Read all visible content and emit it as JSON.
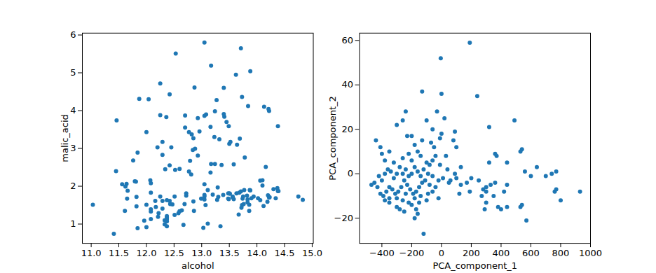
{
  "chart_data": [
    {
      "type": "scatter",
      "x_label": "alcohol",
      "y_label": "malic_acid",
      "color": "#1f77b4",
      "marker": "o",
      "grid": false,
      "xlim": [
        10.84,
        15.02
      ],
      "xticks": [
        {
          "value": 11,
          "label": "11.0"
        },
        11.5,
        {
          "value": 12,
          "label": "12.0"
        },
        12.5,
        {
          "value": 13,
          "label": "13.0"
        },
        13.5,
        {
          "value": 14,
          "label": "14.0"
        },
        14.5,
        {
          "value": 15,
          "label": "15.0"
        }
      ],
      "ylim": [
        0.49,
        6.05
      ],
      "yticks": [
        1,
        2,
        3,
        4,
        5,
        6
      ],
      "x": [
        14.23,
        13.2,
        13.16,
        14.37,
        13.24,
        14.2,
        14.39,
        14.06,
        14.83,
        13.86,
        14.1,
        14.12,
        13.75,
        14.75,
        14.38,
        13.63,
        14.3,
        13.83,
        14.19,
        13.64,
        14.06,
        12.93,
        13.71,
        12.85,
        13.5,
        13.05,
        13.39,
        13.3,
        13.87,
        14.02,
        13.73,
        13.58,
        13.68,
        13.76,
        13.51,
        13.48,
        13.28,
        13.05,
        13.07,
        14.22,
        13.56,
        13.41,
        13.88,
        13.24,
        13.05,
        14.21,
        14.38,
        13.9,
        14.1,
        13.94,
        13.05,
        13.83,
        13.82,
        13.77,
        13.74,
        13.56,
        14.22,
        13.29,
        13.72,
        12.37,
        12.33,
        12.64,
        13.67,
        12.37,
        12.17,
        12.37,
        13.11,
        12.37,
        13.34,
        12.21,
        12.29,
        13.86,
        13.49,
        12.99,
        11.96,
        11.66,
        13.03,
        11.84,
        12.33,
        12.7,
        12,
        12.72,
        12.08,
        13.05,
        11.84,
        12.67,
        12.16,
        11.65,
        11.64,
        12.08,
        12.08,
        12,
        12.69,
        12.29,
        11.62,
        12.47,
        11.81,
        12.29,
        12.37,
        12.29,
        12.08,
        12.6,
        12.34,
        11.82,
        12.51,
        12.42,
        12.25,
        12.72,
        12.22,
        11.61,
        11.46,
        12.52,
        11.76,
        11.41,
        12.08,
        11.03,
        11.82,
        12.42,
        12.77,
        12,
        11.45,
        11.56,
        12.42,
        13.05,
        11.87,
        12.07,
        12.43,
        11.79,
        12.37,
        12.04,
        12.86,
        12.88,
        12.81,
        12.7,
        12.51,
        12.6,
        12.25,
        12.53,
        13.49,
        12.84,
        12.93,
        13.36,
        13.52,
        13.62,
        12.25,
        13.16,
        13.88,
        12.87,
        13.32,
        13.08,
        13.5,
        12.79,
        13.11,
        13.23,
        12.58,
        13.17,
        13.84,
        12.45,
        14.34,
        13.48,
        12.36,
        13.69,
        12.85,
        12.96,
        13.78,
        13.73,
        13.45,
        12.82,
        13.58,
        13.4,
        12.2,
        12.77,
        14.16,
        13.71,
        13.4,
        13.27,
        13.17,
        14.13
      ],
      "y": [
        1.71,
        1.78,
        2.36,
        1.95,
        2.59,
        1.76,
        1.87,
        2.15,
        1.64,
        1.35,
        2.16,
        1.48,
        1.73,
        1.73,
        1.87,
        1.81,
        1.92,
        1.57,
        1.59,
        3.1,
        1.63,
        3.8,
        1.86,
        1.6,
        1.81,
        2.05,
        1.77,
        1.72,
        1.9,
        1.68,
        1.5,
        1.66,
        1.83,
        1.53,
        1.8,
        1.81,
        1.64,
        1.65,
        1.5,
        3.99,
        1.71,
        3.84,
        1.89,
        3.98,
        1.77,
        4.04,
        3.59,
        1.68,
        2.02,
        1.73,
        1.73,
        1.65,
        1.75,
        1.9,
        1.67,
        1.73,
        1.7,
        1.97,
        1.43,
        0.94,
        1.1,
        1.36,
        1.25,
        1.13,
        1.45,
        1.21,
        1.01,
        1.17,
        0.94,
        1.19,
        1.61,
        1.51,
        1.66,
        1.67,
        1.09,
        1.88,
        0.9,
        2.89,
        0.99,
        3.87,
        0.92,
        1.81,
        1.13,
        3.86,
        0.89,
        0.98,
        1.61,
        1.67,
        2.06,
        1.33,
        1.83,
        1.51,
        1.53,
        2.83,
        1.99,
        1.52,
        2.12,
        1.41,
        1.07,
        3.17,
        2.08,
        1.34,
        2.45,
        1.72,
        1.73,
        2.55,
        1.73,
        1.75,
        1.29,
        1.35,
        3.74,
        2.43,
        2.68,
        0.74,
        1.39,
        1.51,
        1.47,
        1.61,
        3.43,
        3.43,
        2.4,
        2.05,
        4.43,
        5.8,
        4.31,
        2.16,
        1.53,
        2.13,
        1.63,
        4.3,
        1.35,
        2.99,
        2.31,
        3.55,
        1.24,
        2.46,
        4.72,
        5.51,
        3.59,
        2.96,
        2.81,
        2.56,
        3.17,
        4.95,
        3.88,
        3.57,
        5.04,
        4.61,
        3.24,
        3.9,
        3.12,
        2.67,
        1.9,
        3.3,
        1.29,
        5.19,
        4.12,
        3.03,
        1.68,
        1.67,
        3.83,
        3.26,
        3.27,
        3.45,
        2.76,
        4.36,
        3.7,
        3.37,
        2.58,
        4.6,
        3.03,
        2.39,
        2.51,
        5.65,
        3.91,
        4.28,
        2.59,
        4.1
      ]
    },
    {
      "type": "scatter",
      "x_label": "PCA_component_1",
      "y_label": "PCA_component_2",
      "color": "#1f77b4",
      "marker": "o",
      "grid": false,
      "xlim": [
        -550,
        1000
      ],
      "xticks": [
        -400,
        -200,
        0,
        200,
        400,
        600,
        800,
        1000
      ],
      "ylim": [
        -31.3,
        63.3
      ],
      "yticks": [
        -20,
        0,
        20,
        40,
        60
      ],
      "x": [
        190,
        -5,
        240,
        -130,
        0,
        -100,
        490,
        320,
        -240,
        -440,
        -410,
        -260,
        -300,
        -230,
        -200,
        -160,
        -30,
        20,
        -60,
        90,
        80,
        100,
        -220,
        -120,
        -180,
        -250,
        -170,
        -200,
        -300,
        -350,
        -380,
        440,
        320,
        360,
        370,
        530,
        540,
        640,
        740,
        770,
        700,
        560,
        600,
        760,
        770,
        800,
        930,
        570,
        530,
        540,
        440,
        400,
        380,
        300,
        290,
        270,
        280,
        300,
        330,
        360,
        420,
        440,
        300,
        350,
        250,
        200,
        190,
        170,
        130,
        100,
        90,
        50,
        40,
        30,
        10,
        -20,
        -10,
        -40,
        -60,
        -80,
        -90,
        -110,
        -130,
        -150,
        -170,
        -190,
        -210,
        -230,
        -250,
        -270,
        -290,
        -310,
        -330,
        -350,
        -370,
        -390,
        -410,
        -430,
        -450,
        -470,
        -400,
        -380,
        -360,
        -340,
        -320,
        -300,
        -280,
        -260,
        -240,
        -220,
        -200,
        -180,
        -160,
        -140,
        -120,
        -100,
        -80,
        -60,
        -140,
        -200,
        -260,
        -320,
        -380,
        -300,
        -260,
        -220,
        -180,
        -140,
        -100,
        -60,
        -420,
        -350,
        -240,
        -150,
        -90,
        -40,
        -20,
        -280,
        -160,
        -50,
        -10,
        60,
        120,
        130,
        -400,
        -350,
        -180,
        -130,
        -70,
        0
      ],
      "y": [
        59,
        52,
        35,
        37,
        36,
        24,
        24,
        21,
        28,
        15,
        12,
        24,
        22,
        17,
        17,
        10,
        28,
        25,
        20,
        19,
        15,
        12,
        9,
        -27,
        -20,
        -17,
        -16,
        -14,
        -15,
        -13,
        -12,
        5,
        5,
        9,
        8,
        10,
        11,
        3,
        0,
        1,
        -1,
        1,
        -1,
        -8,
        -7,
        -12,
        -8,
        -21,
        -15,
        -14,
        -15,
        -16,
        -15,
        -13,
        -16,
        -10,
        -7,
        -6,
        -5,
        -4,
        -8,
        -5,
        -8,
        -10,
        -3,
        -2,
        -8,
        -4,
        -5,
        -2,
        0,
        -4,
        2,
        8,
        -2,
        -3,
        4,
        8,
        -1,
        -5,
        0,
        -3,
        -4,
        -6,
        -8,
        -9,
        -7,
        -5,
        -3,
        -6,
        -8,
        -9,
        -7,
        -6,
        -8,
        -10,
        -9,
        -6,
        -4,
        -5,
        -3,
        0,
        2,
        1,
        -2,
        0,
        3,
        0,
        2,
        -1,
        0,
        3,
        1,
        -1,
        2,
        5,
        4,
        6,
        8,
        6,
        7,
        5,
        6,
        -11,
        -12,
        -13,
        -11,
        -10,
        -12,
        -8,
        -1,
        -11,
        -9,
        -13,
        -9,
        -6,
        -11,
        -16,
        -18,
        12,
        16,
        -3,
        -9,
        3,
        9,
        10,
        13,
        15,
        14,
        18
      ]
    }
  ]
}
